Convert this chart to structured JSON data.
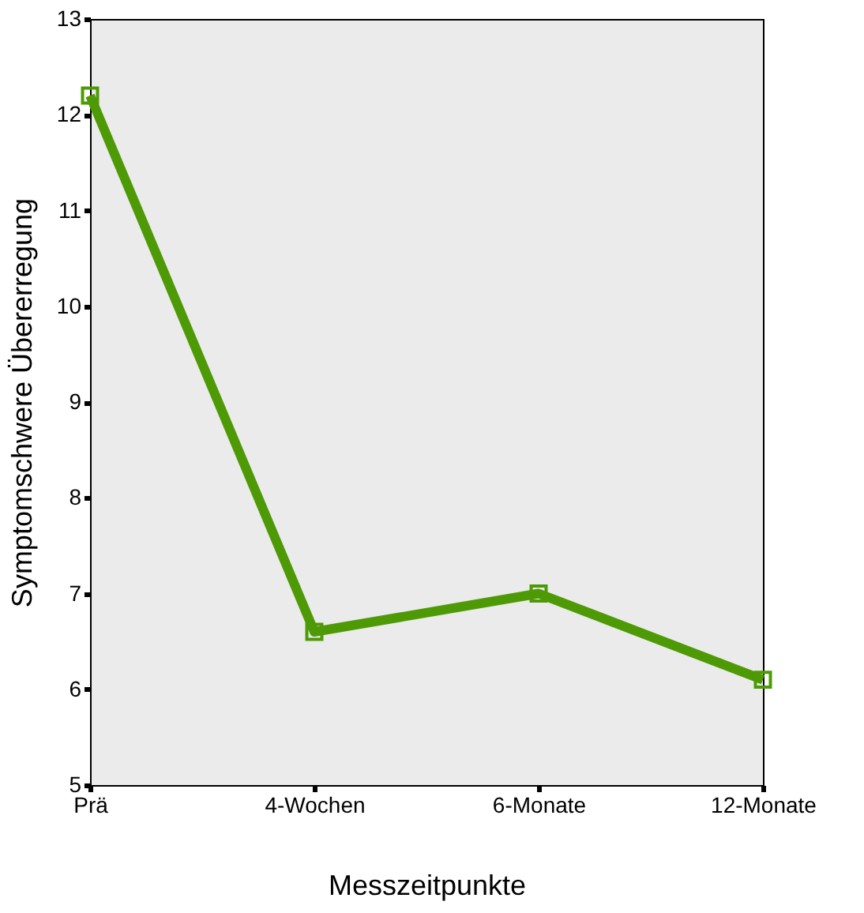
{
  "chart_data": {
    "type": "line",
    "xlabel": "Messzeitpunkte",
    "ylabel": "Symptomschwere Übererregung",
    "categories": [
      "Prä",
      "4-Wochen",
      "6-Monate",
      "12-Monate"
    ],
    "series": [
      {
        "color": "#4e9a06",
        "values": [
          12.2,
          6.6,
          7.0,
          6.1
        ]
      }
    ],
    "ylim": [
      5,
      13
    ],
    "yticks": [
      5,
      6,
      7,
      8,
      9,
      10,
      11,
      12,
      13
    ],
    "grid": false,
    "marker": "square",
    "line_style": "solid"
  }
}
